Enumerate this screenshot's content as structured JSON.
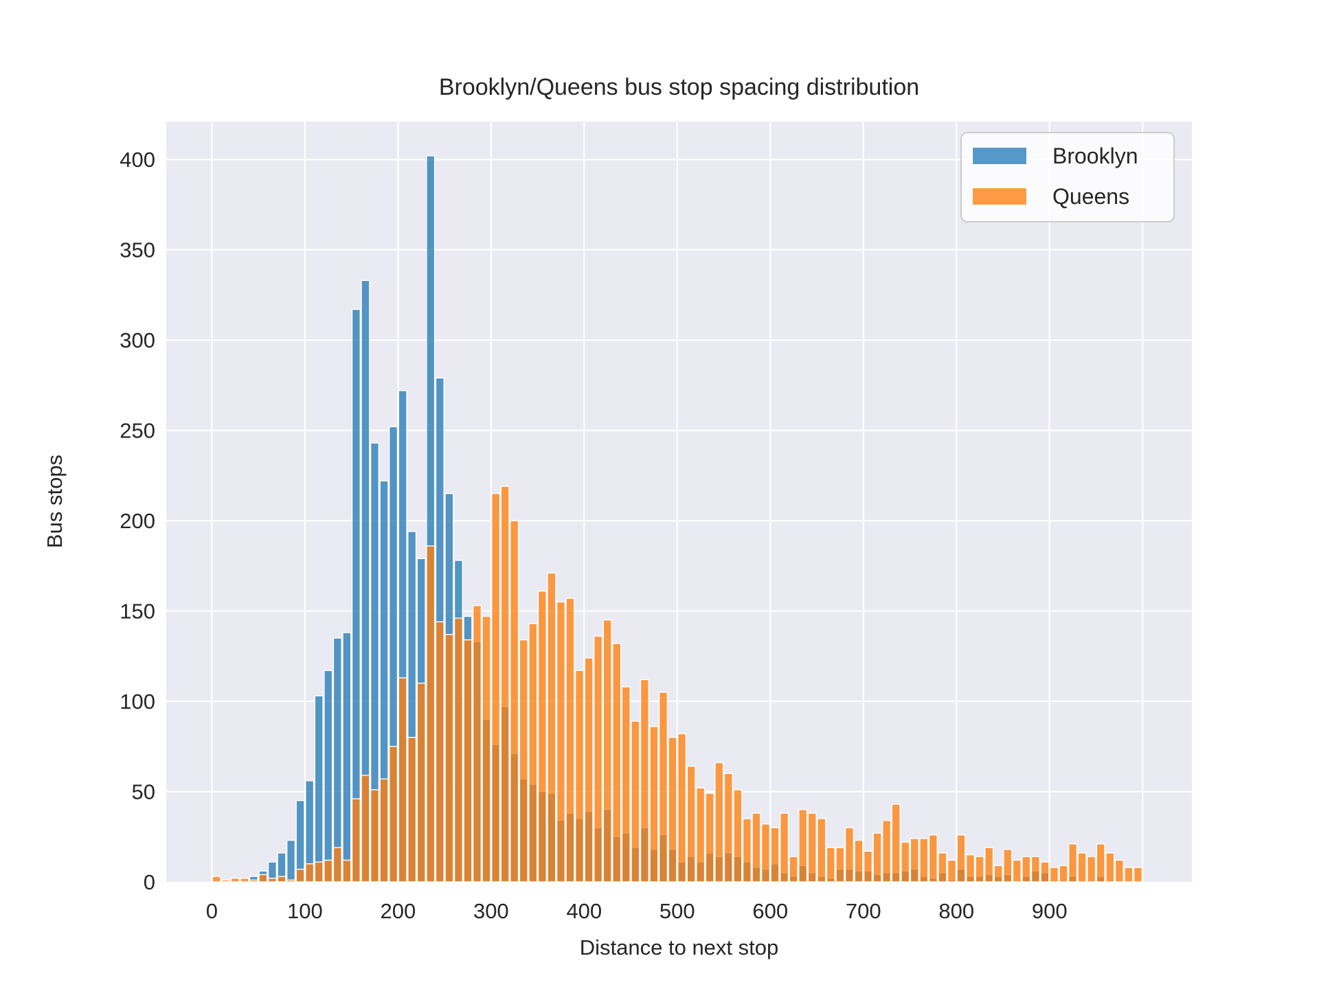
{
  "title": "Brooklyn/Queens bus stop spacing distribution",
  "axes": {
    "xlabel": "Distance to next stop",
    "ylabel": "Bus stops",
    "x_tick_labels": [
      "0",
      "100",
      "200",
      "300",
      "400",
      "500",
      "600",
      "700",
      "800",
      "900"
    ],
    "x_tick_values": [
      0,
      100,
      200,
      300,
      400,
      500,
      600,
      700,
      800,
      900
    ],
    "y_tick_labels": [
      "0",
      "50",
      "100",
      "150",
      "200",
      "250",
      "300",
      "350",
      "400"
    ],
    "y_tick_values": [
      0,
      50,
      100,
      150,
      200,
      250,
      300,
      350,
      400
    ]
  },
  "legend": {
    "entries": [
      {
        "label": "Brooklyn",
        "swatch_color": "rgba(31,119,180,0.75)"
      },
      {
        "label": "Queens",
        "swatch_color": "rgba(255,127,14,0.78)"
      }
    ]
  },
  "colors": {
    "plot_background": "#EAEAF2",
    "figure_background": "#FFFFFF",
    "gridline": "#FFFFFF",
    "text": "#262626",
    "brooklyn_fill": "rgba(31,119,180,0.75)",
    "queens_fill": "rgba(255,127,14,0.78)",
    "bar_edge": "#FFFFFF",
    "legend_border": "#CCCCCC"
  },
  "chart_data": {
    "type": "bar",
    "subtype": "overlapping-histogram",
    "title": "Brooklyn/Queens bus stop spacing distribution",
    "xlabel": "Distance to next stop",
    "ylabel": "Bus stops",
    "xlim": [
      -49,
      1053
    ],
    "ylim": [
      0,
      421
    ],
    "grid": true,
    "legend_position": "upper right",
    "bin_width": 10,
    "bin_starts": [
      0,
      10,
      20,
      30,
      40,
      50,
      60,
      70,
      80,
      90,
      100,
      110,
      120,
      130,
      140,
      150,
      160,
      170,
      180,
      190,
      200,
      210,
      220,
      230,
      240,
      250,
      260,
      270,
      280,
      290,
      300,
      310,
      320,
      330,
      340,
      350,
      360,
      370,
      380,
      390,
      400,
      410,
      420,
      430,
      440,
      450,
      460,
      470,
      480,
      490,
      500,
      510,
      520,
      530,
      540,
      550,
      560,
      570,
      580,
      590,
      600,
      610,
      620,
      630,
      640,
      650,
      660,
      670,
      680,
      690,
      700,
      710,
      720,
      730,
      740,
      750,
      760,
      770,
      780,
      790,
      800,
      810,
      820,
      830,
      840,
      850,
      860,
      870,
      880,
      890,
      900,
      910,
      920,
      930,
      940,
      950,
      960,
      970,
      980,
      990
    ],
    "series": [
      {
        "name": "Brooklyn",
        "values": [
          0,
          0,
          0,
          0,
          3,
          6,
          11,
          16,
          23,
          45,
          56,
          103,
          117,
          135,
          138,
          317,
          333,
          243,
          222,
          252,
          272,
          194,
          179,
          402,
          279,
          215,
          178,
          147,
          133,
          90,
          76,
          97,
          71,
          57,
          54,
          50,
          49,
          34,
          38,
          35,
          39,
          30,
          40,
          25,
          27,
          19,
          30,
          18,
          26,
          18,
          11,
          14,
          11,
          16,
          14,
          16,
          14,
          11,
          8,
          7,
          10,
          5,
          3,
          9,
          5,
          3,
          2,
          7,
          7,
          6,
          6,
          4,
          5,
          5,
          6,
          7,
          3,
          2,
          5,
          1,
          7,
          3,
          3,
          4,
          3,
          4,
          0,
          3,
          6,
          5,
          0,
          0,
          3,
          0,
          0,
          3,
          0,
          0,
          0,
          0
        ]
      },
      {
        "name": "Queens",
        "values": [
          3,
          1,
          2,
          2,
          1,
          4,
          2,
          3,
          1,
          7,
          10,
          11,
          12,
          19,
          12,
          46,
          59,
          51,
          57,
          75,
          113,
          80,
          110,
          186,
          144,
          137,
          146,
          134,
          153,
          147,
          215,
          219,
          200,
          134,
          143,
          161,
          171,
          155,
          157,
          117,
          124,
          136,
          145,
          132,
          108,
          89,
          112,
          86,
          105,
          80,
          82,
          64,
          52,
          49,
          66,
          60,
          51,
          35,
          38,
          32,
          30,
          38,
          14,
          40,
          38,
          35,
          19,
          19,
          30,
          23,
          17,
          27,
          34,
          43,
          22,
          24,
          24,
          26,
          16,
          12,
          26,
          15,
          14,
          19,
          9,
          18,
          12,
          14,
          14,
          11,
          8,
          9,
          21,
          16,
          14,
          21,
          16,
          12,
          8,
          8
        ]
      }
    ]
  }
}
